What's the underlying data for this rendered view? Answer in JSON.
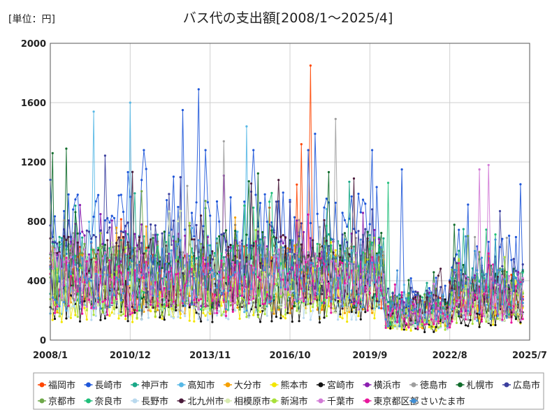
{
  "chart_data": {
    "type": "line",
    "title": "バス代の支出額[2008/1～2025/4]",
    "unit_label": "[単位：円]",
    "xlabel": "",
    "ylabel": "",
    "ylim": [
      0,
      2000
    ],
    "y_ticks": [
      0,
      400,
      800,
      1200,
      1600,
      2000
    ],
    "x_ticks": [
      "2008/1",
      "2010/12",
      "2013/11",
      "2016/10",
      "2019/9",
      "2022/8",
      "2025/7"
    ],
    "x_range": [
      "2008-01",
      "2025-07"
    ],
    "data_range": [
      "2008-01",
      "2025-04"
    ],
    "grid": "both",
    "legend_position": "bottom",
    "series": [
      {
        "name": "福岡市",
        "color": "#ff4500",
        "level": 430
      },
      {
        "name": "長崎市",
        "color": "#1e56d9",
        "level": 650
      },
      {
        "name": "神戸市",
        "color": "#1aa888",
        "level": 470
      },
      {
        "name": "高知市",
        "color": "#56b8e6",
        "level": 360
      },
      {
        "name": "大分市",
        "color": "#f5a000",
        "level": 380
      },
      {
        "name": "熊本市",
        "color": "#f3e600",
        "level": 270
      },
      {
        "name": "宮崎市",
        "color": "#111111",
        "level": 260
      },
      {
        "name": "横浜市",
        "color": "#8b1fb0",
        "level": 480
      },
      {
        "name": "徳島市",
        "color": "#9e9e9e",
        "level": 420
      },
      {
        "name": "札幌市",
        "color": "#0f6b2a",
        "level": 480
      },
      {
        "name": "広島市",
        "color": "#3b3f9e",
        "level": 520
      },
      {
        "name": "京都市",
        "color": "#6fa84a",
        "level": 450
      },
      {
        "name": "奈良市",
        "color": "#1fbf7a",
        "level": 430
      },
      {
        "name": "長野市",
        "color": "#b9d9ee",
        "level": 300
      },
      {
        "name": "北九州市",
        "color": "#4a1a3a",
        "level": 460
      },
      {
        "name": "相模原市",
        "color": "#d8ebb0",
        "level": 380
      },
      {
        "name": "新潟市",
        "color": "#a8e03a",
        "level": 330
      },
      {
        "name": "千葉市",
        "color": "#d27ad6",
        "level": 400
      },
      {
        "name": "東京都区部",
        "color": "#e8179c",
        "level": 360
      },
      {
        "name": "さいたま市",
        "color": "#3f8fd6",
        "level": 440
      }
    ],
    "peaks": [
      {
        "series": "福岡市",
        "date": "2017-07",
        "value": 1850
      },
      {
        "series": "長崎市",
        "date": "2013-06",
        "value": 1690
      },
      {
        "series": "高知市",
        "date": "2010-12",
        "value": 1600
      },
      {
        "series": "高知市",
        "date": "2009-08",
        "value": 1540
      },
      {
        "series": "長崎市",
        "date": "2012-11",
        "value": 1550
      },
      {
        "series": "徳島市",
        "date": "2018-06",
        "value": 1490
      },
      {
        "series": "高知市",
        "date": "2015-03",
        "value": 1440
      },
      {
        "series": "長崎市",
        "date": "2017-09",
        "value": 1390
      },
      {
        "series": "徳島市",
        "date": "2014-05",
        "value": 1340
      },
      {
        "series": "福岡市",
        "date": "2017-03",
        "value": 1320
      },
      {
        "series": "札幌市",
        "date": "2008-08",
        "value": 1290
      },
      {
        "series": "札幌市",
        "date": "2008-02",
        "value": 1260
      },
      {
        "series": "千葉市",
        "date": "2024-01",
        "value": 1180
      },
      {
        "series": "千葉市",
        "date": "2023-09",
        "value": 1150
      },
      {
        "series": "長崎市",
        "date": "2020-11",
        "value": 1150
      },
      {
        "series": "奈良市",
        "date": "2020-05",
        "value": 1060
      },
      {
        "series": "長崎市",
        "date": "2025-03",
        "value": 1050
      }
    ]
  }
}
